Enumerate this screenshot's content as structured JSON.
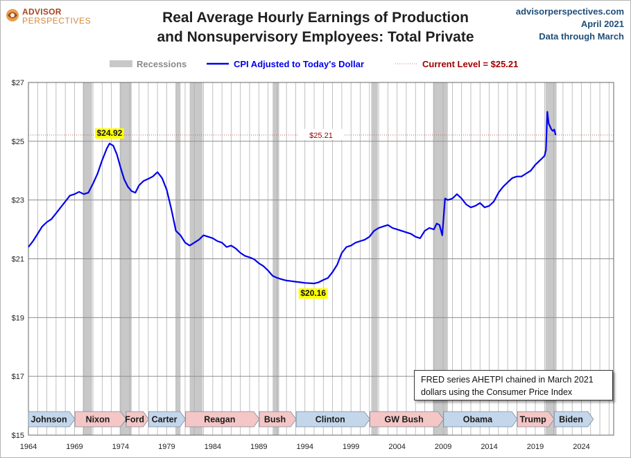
{
  "logo": {
    "line1": "ADVISOR",
    "line2": "PERSPECTIVES"
  },
  "title": {
    "line1": "Real Average Hourly Earnings of Production",
    "line2": "and Nonsupervisory Employees: Total Private"
  },
  "source": {
    "site": "advisorperspectives.com",
    "date": "April 2021",
    "through": "Data through March"
  },
  "note": {
    "line1": "FRED series AHETPI chained in March 2021",
    "line2": "dollars using the Consumer Price Index"
  },
  "colors": {
    "line": "#0000ee",
    "recession": "#c8c8c8",
    "current": "#a00000",
    "grid": "#b0b0b0",
    "rep": "#f4c6c6",
    "dem": "#c3d6ea",
    "highlight": "#ffff00"
  },
  "chart_data": {
    "type": "line",
    "xlim": [
      1964,
      2027.5
    ],
    "ylim": [
      15,
      27
    ],
    "y_ticks": [
      15,
      17,
      19,
      21,
      23,
      25,
      27
    ],
    "y_tick_labels": [
      "$15",
      "$17",
      "$19",
      "$21",
      "$23",
      "$25",
      "$27"
    ],
    "x_ticks": [
      1964,
      1969,
      1974,
      1979,
      1984,
      1989,
      1994,
      1999,
      2004,
      2009,
      2014,
      2019,
      2024
    ],
    "grid": true,
    "legend": {
      "recession_label": "Recessions",
      "series_label": "CPI Adjusted to Today's Dollar",
      "current_label": "Current Level = $25.21"
    },
    "current_level": 25.21,
    "current_level_label": "$25.21",
    "annotations": [
      {
        "x": 1972.8,
        "y": 24.92,
        "label": "$24.92"
      },
      {
        "x": 1994.9,
        "y": 20.16,
        "label": "$20.16"
      }
    ],
    "recessions": [
      [
        1969.9,
        1970.9
      ],
      [
        1973.9,
        1975.2
      ],
      [
        1980.0,
        1980.5
      ],
      [
        1981.5,
        1982.9
      ],
      [
        1990.5,
        1991.2
      ],
      [
        2001.2,
        2001.9
      ],
      [
        2007.9,
        2009.5
      ],
      [
        2020.1,
        2021.3
      ]
    ],
    "presidents": [
      {
        "name": "Johnson",
        "start": 1964,
        "end": 1969.05,
        "party": "D"
      },
      {
        "name": "Nixon",
        "start": 1969.05,
        "end": 1974.6,
        "party": "R"
      },
      {
        "name": "Ford",
        "start": 1974.6,
        "end": 1977.05,
        "party": "R"
      },
      {
        "name": "Carter",
        "start": 1977.05,
        "end": 1981.05,
        "party": "D"
      },
      {
        "name": "Reagan",
        "start": 1981.05,
        "end": 1989.05,
        "party": "R"
      },
      {
        "name": "Bush",
        "start": 1989.05,
        "end": 1993.05,
        "party": "R"
      },
      {
        "name": "Clinton",
        "start": 1993.05,
        "end": 2001.05,
        "party": "D"
      },
      {
        "name": "GW Bush",
        "start": 2001.05,
        "end": 2009.05,
        "party": "R"
      },
      {
        "name": "Obama",
        "start": 2009.05,
        "end": 2017.05,
        "party": "D"
      },
      {
        "name": "Trump",
        "start": 2017.05,
        "end": 2021.05,
        "party": "R"
      },
      {
        "name": "Biden",
        "start": 2021.05,
        "end": 2025.3,
        "party": "D"
      }
    ],
    "series": [
      {
        "name": "CPI Adjusted to Today's Dollar",
        "x": [
          1964.0,
          1964.5,
          1965.0,
          1965.5,
          1966.0,
          1966.5,
          1967.0,
          1967.5,
          1968.0,
          1968.5,
          1969.0,
          1969.5,
          1970.0,
          1970.5,
          1971.0,
          1971.5,
          1972.0,
          1972.5,
          1972.8,
          1973.2,
          1973.6,
          1974.0,
          1974.4,
          1974.8,
          1975.2,
          1975.6,
          1976.0,
          1976.5,
          1977.0,
          1977.5,
          1978.0,
          1978.5,
          1979.0,
          1979.5,
          1980.0,
          1980.5,
          1981.0,
          1981.5,
          1982.0,
          1982.5,
          1983.0,
          1983.5,
          1984.0,
          1984.5,
          1985.0,
          1985.5,
          1986.0,
          1986.5,
          1987.0,
          1987.5,
          1988.0,
          1988.5,
          1989.0,
          1989.5,
          1990.0,
          1990.5,
          1991.0,
          1991.5,
          1992.0,
          1992.5,
          1993.0,
          1993.5,
          1994.0,
          1994.5,
          1995.0,
          1995.5,
          1996.0,
          1996.5,
          1997.0,
          1997.5,
          1998.0,
          1998.5,
          1999.0,
          1999.5,
          2000.0,
          2000.5,
          2001.0,
          2001.5,
          2002.0,
          2002.5,
          2003.0,
          2003.5,
          2004.0,
          2004.5,
          2005.0,
          2005.5,
          2006.0,
          2006.5,
          2007.0,
          2007.5,
          2008.0,
          2008.3,
          2008.6,
          2008.9,
          2009.2,
          2009.5,
          2010.0,
          2010.5,
          2011.0,
          2011.5,
          2012.0,
          2012.5,
          2013.0,
          2013.5,
          2014.0,
          2014.5,
          2015.0,
          2015.5,
          2016.0,
          2016.5,
          2017.0,
          2017.5,
          2018.0,
          2018.5,
          2019.0,
          2019.5,
          2020.0,
          2020.15,
          2020.3,
          2020.45,
          2020.6,
          2020.75,
          2020.9,
          2021.05,
          2021.2
        ],
        "values": [
          21.4,
          21.6,
          21.85,
          22.1,
          22.25,
          22.35,
          22.55,
          22.75,
          22.95,
          23.15,
          23.2,
          23.28,
          23.2,
          23.25,
          23.55,
          23.9,
          24.35,
          24.75,
          24.92,
          24.85,
          24.55,
          24.1,
          23.7,
          23.45,
          23.3,
          23.25,
          23.5,
          23.65,
          23.72,
          23.8,
          23.95,
          23.75,
          23.35,
          22.7,
          21.95,
          21.8,
          21.55,
          21.45,
          21.55,
          21.65,
          21.8,
          21.75,
          21.7,
          21.6,
          21.55,
          21.4,
          21.45,
          21.35,
          21.2,
          21.1,
          21.05,
          20.98,
          20.85,
          20.75,
          20.6,
          20.42,
          20.35,
          20.3,
          20.26,
          20.24,
          20.22,
          20.2,
          20.18,
          20.17,
          20.16,
          20.2,
          20.28,
          20.35,
          20.55,
          20.8,
          21.2,
          21.4,
          21.45,
          21.55,
          21.6,
          21.65,
          21.75,
          21.95,
          22.05,
          22.1,
          22.15,
          22.05,
          22.0,
          21.95,
          21.9,
          21.85,
          21.75,
          21.7,
          21.95,
          22.05,
          22.0,
          22.2,
          22.15,
          21.8,
          23.05,
          23.0,
          23.05,
          23.2,
          23.05,
          22.85,
          22.75,
          22.8,
          22.9,
          22.75,
          22.8,
          22.95,
          23.25,
          23.45,
          23.6,
          23.75,
          23.8,
          23.8,
          23.9,
          24.0,
          24.2,
          24.35,
          24.5,
          24.7,
          26.0,
          25.6,
          25.5,
          25.4,
          25.35,
          25.4,
          25.21
        ]
      }
    ]
  }
}
